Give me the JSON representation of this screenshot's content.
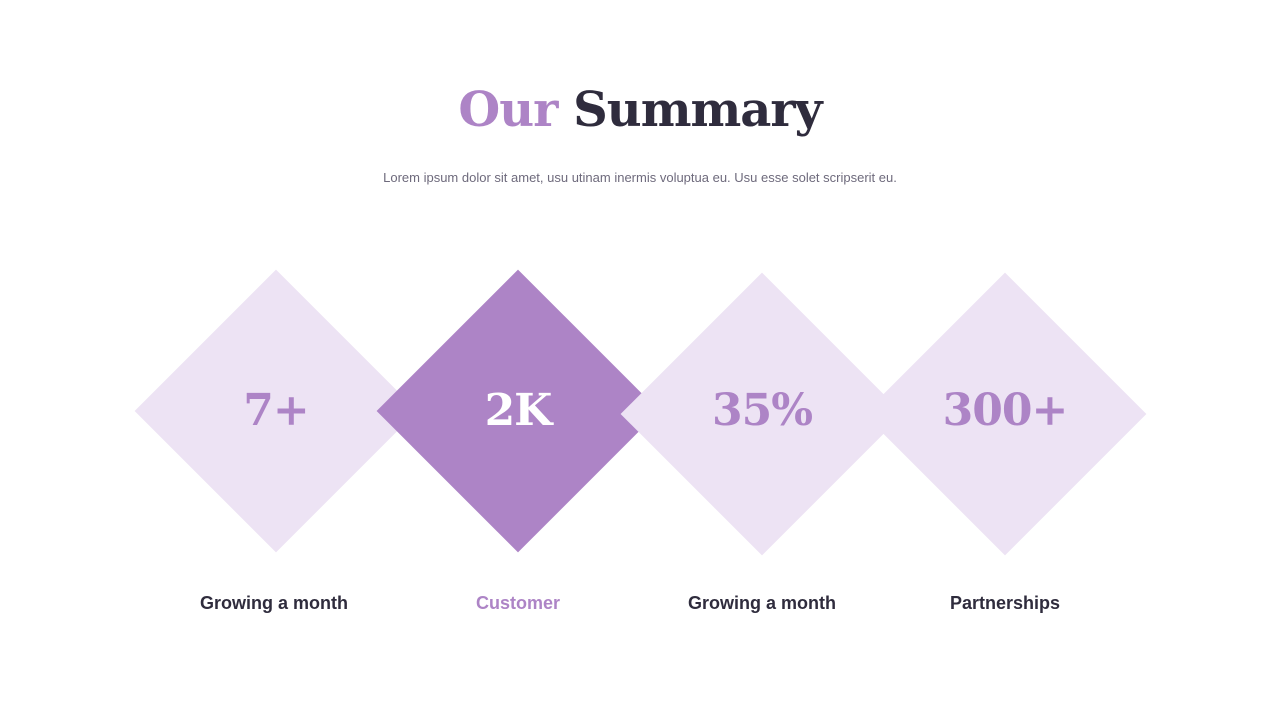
{
  "header": {
    "title_accent": "Our",
    "title_main": "Summary",
    "subtitle": "Lorem ipsum dolor sit amet, usu utinam inermis voluptua eu. Usu esse solet scripserit eu."
  },
  "stats": [
    {
      "value": "7+",
      "label": "Growing  a month",
      "highlighted": false
    },
    {
      "value": "2K",
      "label": "Customer",
      "highlighted": true
    },
    {
      "value": "35%",
      "label": "Growing  a month",
      "highlighted": false
    },
    {
      "value": "300+",
      "label": "Partnerships",
      "highlighted": false
    }
  ],
  "colors": {
    "accent": "#ad84c6",
    "light_diamond": "#ede3f4",
    "dark_text": "#2f2c3d",
    "muted_text": "#6e6a7c"
  }
}
